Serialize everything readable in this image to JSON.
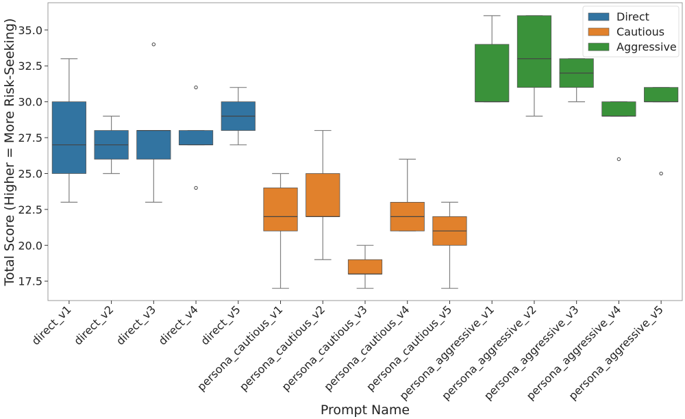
{
  "chart_data": {
    "type": "box",
    "title": "",
    "xlabel": "Prompt Name",
    "ylabel": "Total Score (Higher = More Risk-Seeking)",
    "ylim": [
      16.15,
      36.9
    ],
    "yticks": [
      17.5,
      20.0,
      22.5,
      25.0,
      27.5,
      30.0,
      32.5,
      35.0
    ],
    "ytick_labels": [
      "17.5",
      "20.0",
      "22.5",
      "25.0",
      "27.5",
      "30.0",
      "32.5",
      "35.0"
    ],
    "grid": false,
    "legend_placement": "top-right",
    "legend": [
      {
        "name": "Direct",
        "color": "#3274a1"
      },
      {
        "name": "Cautious",
        "color": "#e1812c"
      },
      {
        "name": "Aggressive",
        "color": "#3a923a"
      }
    ],
    "categories": [
      "direct_v1",
      "direct_v2",
      "direct_v3",
      "direct_v4",
      "direct_v5",
      "persona_cautious_v1",
      "persona_cautious_v2",
      "persona_cautious_v3",
      "persona_cautious_v4",
      "persona_cautious_v5",
      "persona_aggressive_v1",
      "persona_aggressive_v2",
      "persona_aggressive_v3",
      "persona_aggressive_v4",
      "persona_aggressive_v5"
    ],
    "boxes": [
      {
        "group": 0,
        "whislo": 23,
        "q1": 25,
        "med": 27,
        "q3": 30,
        "whishi": 33,
        "fliers": []
      },
      {
        "group": 0,
        "whislo": 25,
        "q1": 26,
        "med": 27,
        "q3": 28,
        "whishi": 29,
        "fliers": []
      },
      {
        "group": 0,
        "whislo": 23,
        "q1": 26,
        "med": 28,
        "q3": 28,
        "whishi": 28,
        "fliers": [
          34
        ]
      },
      {
        "group": 0,
        "whislo": 27,
        "q1": 27,
        "med": 27,
        "q3": 28,
        "whishi": 28,
        "fliers": [
          31,
          24
        ]
      },
      {
        "group": 0,
        "whislo": 27,
        "q1": 28,
        "med": 29,
        "q3": 30,
        "whishi": 31,
        "fliers": []
      },
      {
        "group": 1,
        "whislo": 17,
        "q1": 21,
        "med": 22,
        "q3": 24,
        "whishi": 25,
        "fliers": []
      },
      {
        "group": 1,
        "whislo": 19,
        "q1": 22,
        "med": 22,
        "q3": 25,
        "whishi": 28,
        "fliers": []
      },
      {
        "group": 1,
        "whislo": 17,
        "q1": 18,
        "med": 18,
        "q3": 19,
        "whishi": 20,
        "fliers": []
      },
      {
        "group": 1,
        "whislo": 21,
        "q1": 21,
        "med": 22,
        "q3": 23,
        "whishi": 26,
        "fliers": []
      },
      {
        "group": 1,
        "whislo": 17,
        "q1": 20,
        "med": 21,
        "q3": 22,
        "whishi": 23,
        "fliers": []
      },
      {
        "group": 2,
        "whislo": 30,
        "q1": 30,
        "med": 30,
        "q3": 34,
        "whishi": 36,
        "fliers": []
      },
      {
        "group": 2,
        "whislo": 29,
        "q1": 31,
        "med": 33,
        "q3": 36,
        "whishi": 36,
        "fliers": []
      },
      {
        "group": 2,
        "whislo": 30,
        "q1": 31,
        "med": 32,
        "q3": 33,
        "whishi": 33,
        "fliers": []
      },
      {
        "group": 2,
        "whislo": 29,
        "q1": 29,
        "med": 29,
        "q3": 30,
        "whishi": 30,
        "fliers": [
          26
        ]
      },
      {
        "group": 2,
        "whislo": 30,
        "q1": 30,
        "med": 30,
        "q3": 31,
        "whishi": 31,
        "fliers": [
          25
        ]
      }
    ]
  }
}
